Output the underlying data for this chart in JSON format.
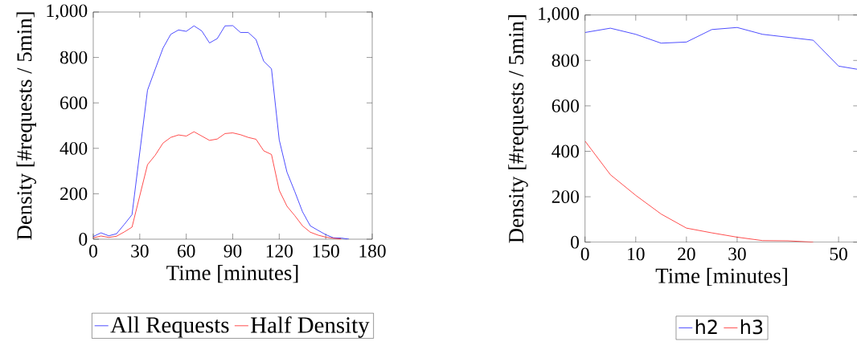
{
  "chart_data": [
    {
      "type": "line",
      "xlabel": "Time [minutes]",
      "ylabel": "Density [#requests / 5min]",
      "x": [
        0,
        5,
        10,
        15,
        20,
        25,
        30,
        35,
        40,
        45,
        50,
        55,
        60,
        65,
        70,
        75,
        80,
        85,
        90,
        95,
        100,
        105,
        110,
        115,
        120,
        125,
        130,
        135,
        140,
        145,
        150,
        155,
        160,
        165
      ],
      "series": [
        {
          "name": "All Requests",
          "color": "#0000ff",
          "values": [
            12,
            28,
            15,
            24,
            65,
            108,
            382,
            656,
            749,
            841,
            902,
            921,
            915,
            939,
            917,
            864,
            883,
            939,
            940,
            910,
            910,
            879,
            783,
            750,
            437,
            295,
            210,
            121,
            59,
            39,
            20,
            6,
            5,
            0
          ]
        },
        {
          "name": "Half Density",
          "color": "#ff0000",
          "values": [
            6,
            14,
            8,
            13,
            32,
            53,
            191,
            328,
            370,
            423,
            448,
            459,
            454,
            473,
            454,
            435,
            441,
            465,
            468,
            460,
            448,
            440,
            389,
            373,
            215,
            145,
            104,
            59,
            31,
            18,
            9,
            4,
            1,
            null
          ]
        }
      ],
      "xlim": [
        0,
        180
      ],
      "ylim": [
        0,
        1000
      ],
      "xticks": [
        0,
        30,
        60,
        90,
        120,
        150,
        180
      ],
      "yticks": [
        0,
        200,
        400,
        600,
        800,
        {
          "value": 1000,
          "label": "1,000"
        }
      ],
      "legend": "bottom"
    },
    {
      "type": "line",
      "xlabel": "Time [minutes]",
      "ylabel": "Density [#requests / 5min]",
      "series": [
        {
          "name": "h2",
          "color": "#0000ff",
          "x": [
            0,
            5,
            10,
            15,
            20,
            25,
            30,
            35,
            40,
            45,
            50,
            54
          ],
          "values": [
            923,
            942,
            915,
            876,
            881,
            936,
            945,
            915,
            902,
            889,
            775,
            760
          ]
        },
        {
          "name": "h3",
          "color": "#ff0000",
          "x": [
            0,
            5,
            10,
            15,
            20,
            25,
            30,
            35,
            40,
            45
          ],
          "values": [
            445,
            297,
            206,
            124,
            62,
            41,
            22,
            7,
            6,
            0
          ]
        }
      ],
      "xlim": [
        0,
        54
      ],
      "ylim": [
        0,
        1000
      ],
      "xticks": [
        0,
        10,
        20,
        30,
        50
      ],
      "yticks": [
        0,
        200,
        400,
        600,
        800,
        {
          "value": 1000,
          "label": "1,000"
        }
      ],
      "legend": "bottom"
    }
  ]
}
